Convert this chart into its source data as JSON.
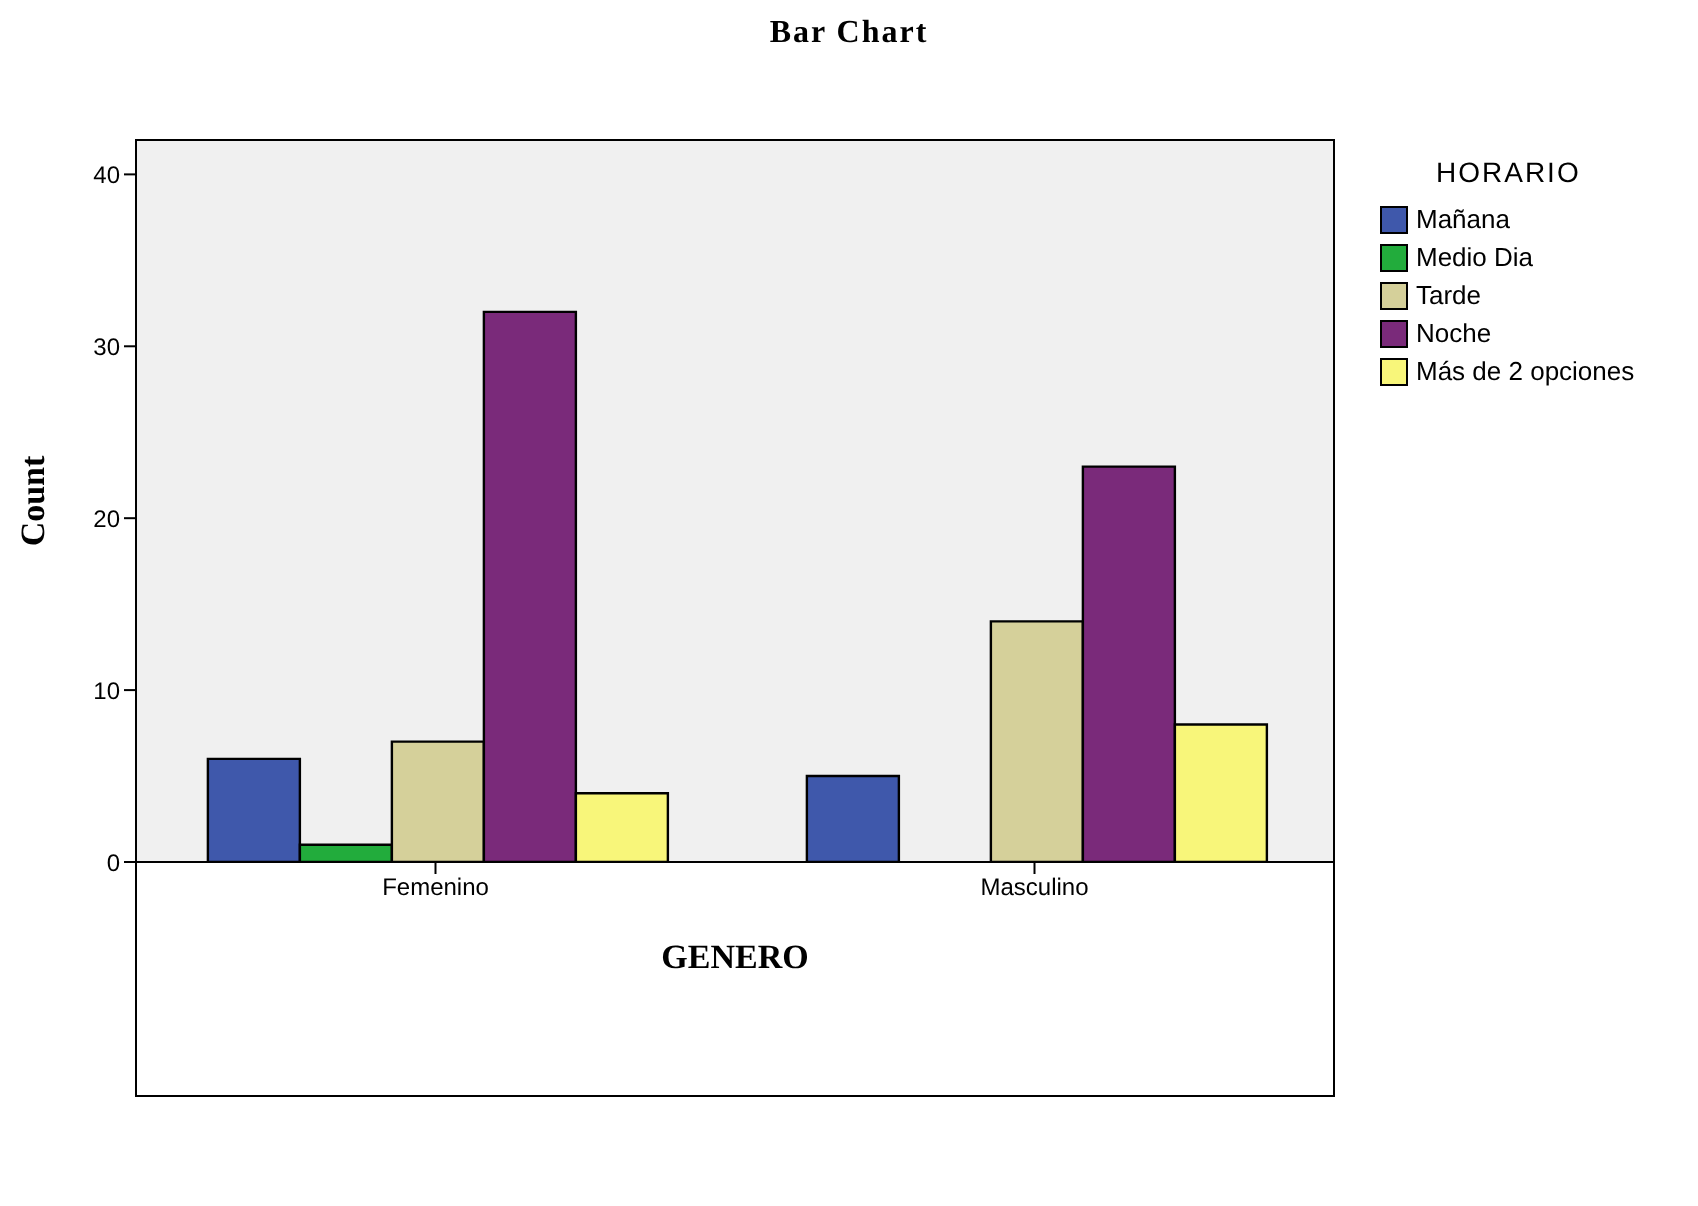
{
  "chart_data": {
    "type": "bar",
    "title": "Bar Chart",
    "xlabel": "GENERO",
    "ylabel": "Count",
    "legend_title": "HORARIO",
    "categories": [
      "Femenino",
      "Masculino"
    ],
    "series": [
      {
        "name": "Mañana",
        "color": "#3f58ab",
        "values": [
          6,
          5
        ]
      },
      {
        "name": "Medio Dia",
        "color": "#22ac3c",
        "values": [
          1,
          null
        ]
      },
      {
        "name": "Tarde",
        "color": "#d5d09a",
        "values": [
          7,
          14
        ]
      },
      {
        "name": "Noche",
        "color": "#7a2a7a",
        "values": [
          32,
          23
        ]
      },
      {
        "name": "Más de 2 opciones",
        "color": "#f8f67a",
        "values": [
          4,
          8
        ]
      }
    ],
    "ylim": [
      0,
      42
    ],
    "yticks": [
      0,
      10,
      20,
      30,
      40
    ],
    "grid": false,
    "legend": "right"
  }
}
